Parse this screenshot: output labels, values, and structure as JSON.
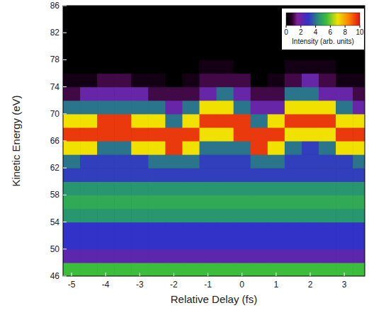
{
  "chart_data": {
    "type": "heatmap",
    "x_label": "Relative Delay (fs)",
    "y_label": "Kinetic Energy (eV)",
    "x": [
      -5,
      -4.5,
      -4,
      -3.5,
      -3,
      -2.5,
      -2,
      -1.5,
      -1,
      -0.5,
      0,
      0.5,
      1,
      1.5,
      2,
      2.5,
      3,
      3.5
    ],
    "y": [
      47,
      49,
      51,
      53,
      55,
      57,
      59,
      61,
      63,
      65,
      67,
      69,
      71,
      73,
      75,
      77,
      79,
      81,
      83,
      85
    ],
    "z": [
      [
        5.5,
        2.2,
        3,
        3,
        4.5,
        5,
        4.5,
        3.2,
        4,
        7,
        9.5,
        7,
        4,
        1,
        0.4,
        0,
        0,
        0,
        0,
        0
      ],
      [
        5.5,
        2.2,
        3,
        3,
        4.5,
        5,
        4.5,
        3.2,
        3.2,
        7,
        9.5,
        7,
        4,
        2,
        0.4,
        0,
        0,
        0,
        0,
        0
      ],
      [
        5.5,
        2.2,
        3,
        3,
        4.5,
        5,
        4.5,
        3.2,
        3.2,
        4,
        9.5,
        9.5,
        4,
        2,
        1,
        0,
        0,
        0,
        0,
        0
      ],
      [
        5.5,
        2.2,
        3,
        3,
        4.5,
        5,
        4.5,
        3.2,
        3.2,
        4,
        9.5,
        9.5,
        4,
        2,
        1,
        0,
        0,
        0,
        0,
        0
      ],
      [
        5.5,
        2.2,
        3,
        3,
        4.5,
        5,
        4.5,
        3.2,
        3.2,
        7,
        9.5,
        7,
        4,
        2,
        0.4,
        0,
        0,
        0,
        0,
        0
      ],
      [
        5.5,
        2.2,
        3,
        3,
        4.5,
        5,
        4.5,
        3.2,
        4,
        7,
        9.5,
        7,
        4,
        1,
        0.4,
        0,
        0,
        0,
        0,
        0
      ],
      [
        5.5,
        2.2,
        3,
        3,
        4.5,
        5,
        4.5,
        3.2,
        4,
        9.5,
        9.5,
        4,
        2,
        1,
        0,
        0,
        0,
        0,
        0,
        0
      ],
      [
        5.5,
        2.2,
        3,
        3,
        4.5,
        5,
        4.5,
        3.2,
        4,
        7,
        9.5,
        7,
        4,
        1,
        0.4,
        0,
        0,
        0,
        0,
        0
      ],
      [
        5.5,
        2.2,
        3,
        3,
        4.5,
        5,
        4.5,
        3.2,
        3.2,
        4,
        7,
        9.5,
        7,
        2,
        1,
        0.4,
        0,
        0,
        0,
        0
      ],
      [
        5.5,
        2.2,
        3,
        3,
        4.5,
        5,
        4.5,
        3.2,
        3.2,
        4,
        7,
        9.5,
        7,
        4,
        1,
        0.4,
        0,
        0,
        0,
        0
      ],
      [
        5.5,
        2.2,
        3,
        3,
        4.5,
        5,
        4.5,
        3.2,
        3.2,
        4,
        9.5,
        9.5,
        4,
        2,
        1,
        0,
        0,
        0,
        0,
        0
      ],
      [
        5.5,
        2.2,
        3,
        3,
        4.5,
        5,
        4.5,
        3.2,
        4,
        9.5,
        9.5,
        4,
        2,
        1,
        0,
        0,
        0,
        0,
        0,
        0
      ],
      [
        5.5,
        2.2,
        3,
        3,
        4.5,
        5,
        4.5,
        3.2,
        4,
        7,
        9.5,
        7,
        2,
        1,
        0.4,
        0,
        0,
        0,
        0,
        0
      ],
      [
        5.5,
        2.2,
        3,
        3,
        4.5,
        5,
        4.5,
        3.2,
        3.2,
        4,
        7,
        9.5,
        7,
        4,
        1,
        0.4,
        0,
        0,
        0,
        0
      ],
      [
        5.5,
        2.2,
        3,
        3,
        4.5,
        5,
        4.5,
        3.2,
        3.2,
        3.2,
        7,
        9.5,
        7,
        4,
        2,
        0.4,
        0,
        0,
        0,
        0
      ],
      [
        5.5,
        2.2,
        3,
        3,
        4.5,
        5,
        4.5,
        3.2,
        3.2,
        4,
        7,
        9.5,
        7,
        2,
        1,
        0.4,
        0,
        0,
        0,
        0
      ],
      [
        5.5,
        2.2,
        3,
        3,
        4.5,
        5,
        4.5,
        3.2,
        3.2,
        7,
        9.5,
        7,
        4,
        2,
        0.4,
        0,
        0,
        0,
        0,
        0
      ],
      [
        5.5,
        2.2,
        3,
        3,
        4.5,
        5,
        4.5,
        3.2,
        4,
        7,
        9.5,
        7,
        2,
        1,
        0.4,
        0,
        0,
        0,
        0,
        0
      ]
    ],
    "xlim": [
      -5.25,
      3.6
    ],
    "xticks": [
      -5,
      -4,
      -3,
      -2,
      -1,
      0,
      1,
      2,
      3
    ],
    "ylim": [
      46,
      86
    ],
    "yticks": [
      46,
      50,
      54,
      58,
      62,
      66,
      70,
      74,
      78,
      82,
      86
    ],
    "clim": [
      0,
      10
    ],
    "cticks": [
      0,
      2,
      4,
      6,
      8,
      10
    ],
    "colorbar_label": "Intensity (arb. units)"
  }
}
